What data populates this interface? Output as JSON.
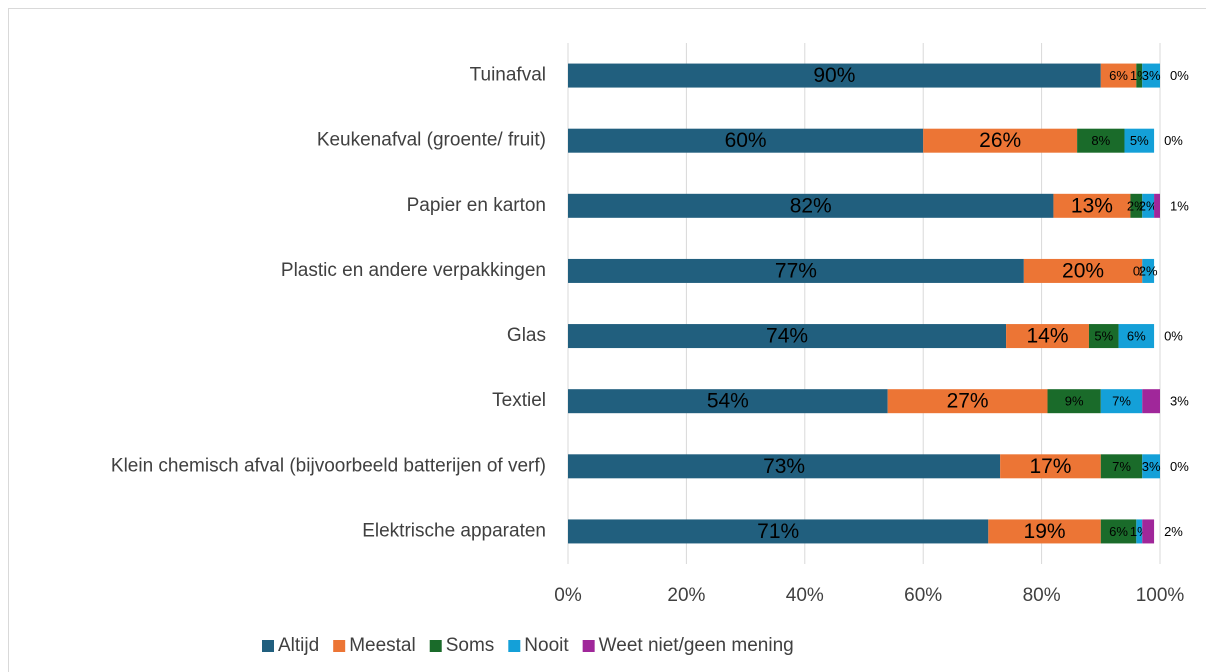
{
  "chart_data": {
    "type": "stacked_bar_horizontal",
    "categories": [
      "Tuinafval",
      "Keukenafval (groente/ fruit)",
      "Papier en karton",
      "Plastic en andere verpakkingen",
      "Glas",
      "Textiel",
      "Klein chemisch afval (bijvoorbeeld batterijen of verf)",
      "Elektrische apparaten"
    ],
    "series": [
      {
        "name": "Altijd",
        "color": "#215f7e",
        "values": [
          90,
          60,
          82,
          77,
          74,
          54,
          73,
          71
        ],
        "value_labels": [
          "90%",
          "60%",
          "82%",
          "77%",
          "74%",
          "54%",
          "73%",
          "71%"
        ]
      },
      {
        "name": "Meestal",
        "color": "#ec7535",
        "values": [
          6,
          26,
          13,
          20,
          14,
          27,
          17,
          19
        ],
        "value_labels": [
          "6%",
          "26%",
          "13%",
          "20%",
          "14%",
          "27%",
          "17%",
          "19%"
        ]
      },
      {
        "name": "Soms",
        "color": "#1a6b2a",
        "values": [
          1,
          8,
          2,
          0,
          5,
          9,
          7,
          6
        ],
        "value_labels": [
          "1%",
          "8%",
          "2%",
          "0%",
          "5%",
          "9%",
          "7%",
          "6%"
        ]
      },
      {
        "name": "Nooit",
        "color": "#14a0d8",
        "values": [
          3,
          5,
          2,
          2,
          6,
          7,
          3,
          1
        ],
        "value_labels": [
          "3%",
          "5%",
          "2%",
          "2%",
          "6%",
          "7%",
          "3%",
          "1%"
        ]
      },
      {
        "name": "Weet niet/geen mening",
        "color": "#a0279a",
        "values": [
          0,
          0,
          1,
          null,
          0,
          3,
          0,
          2
        ],
        "value_labels": [
          "0%",
          "0%",
          "1%",
          null,
          "0%",
          "3%",
          "0%",
          "2%"
        ]
      }
    ],
    "xlim": [
      0,
      100
    ],
    "xticks": [
      {
        "value": 0,
        "label": "0%"
      },
      {
        "value": 20,
        "label": "20%"
      },
      {
        "value": 40,
        "label": "40%"
      },
      {
        "value": 60,
        "label": "60%"
      },
      {
        "value": 80,
        "label": "80%"
      },
      {
        "value": 100,
        "label": "100%"
      }
    ],
    "grid": true,
    "legend": "bottom"
  }
}
